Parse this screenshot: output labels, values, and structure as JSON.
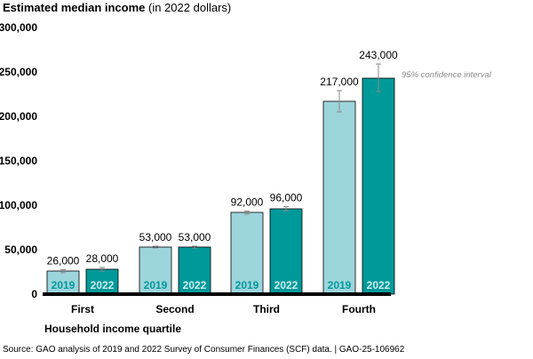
{
  "title": {
    "bold": "Estimated median income",
    "normal": "(in 2022 dollars)"
  },
  "x_axis_title": "Household income quartile",
  "ci_annotation": "95% confidence interval",
  "source": "Source: GAO analysis of 2019 and 2022 Survey of Consumer Finances (SCF) data.  |  GAO-25-106962",
  "colors": {
    "light_teal": "#9dd5dc",
    "dark_teal": "#00999a",
    "bar_outline": "#000000",
    "year_label_on_light": "#00999a",
    "year_label_on_dark": "#cdeeee",
    "ci_line": "#8a8a8a",
    "annotation_text": "#8a8a8a"
  },
  "chart_data": {
    "type": "bar",
    "categories": [
      "First",
      "Second",
      "Third",
      "Fourth"
    ],
    "series": [
      {
        "year": "2019",
        "values": [
          26000,
          53000,
          92000,
          217000
        ],
        "ci_low": [
          24000,
          52000,
          90000,
          205000
        ],
        "ci_high": [
          27500,
          54000,
          93500,
          229000
        ]
      },
      {
        "year": "2022",
        "values": [
          28000,
          53000,
          96000,
          243000
        ],
        "ci_low": [
          26000,
          52000,
          94000,
          228000
        ],
        "ci_high": [
          30000,
          54000,
          98500,
          259000
        ]
      }
    ],
    "value_labels": [
      [
        "26,000",
        "53,000",
        "92,000",
        "217,000"
      ],
      [
        "28,000",
        "53,000",
        "96,000",
        "243,000"
      ]
    ],
    "y_ticks": [
      0,
      50000,
      100000,
      150000,
      200000,
      250000,
      300000
    ],
    "y_tick_labels": [
      "0",
      "50,000",
      "100,000",
      "150,000",
      "200,000",
      "250,000",
      "300,000"
    ],
    "ylim": [
      0,
      300000
    ],
    "grid": false,
    "ci_annotation_series": 1,
    "ci_annotation_category": 3
  }
}
